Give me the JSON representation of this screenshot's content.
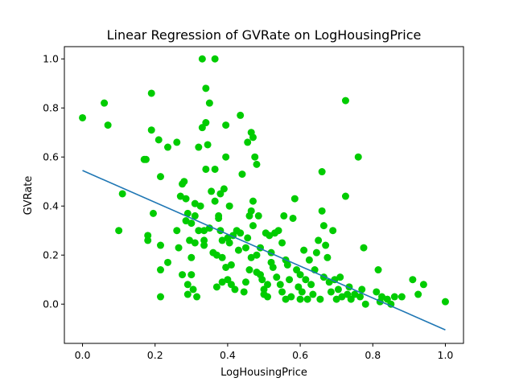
{
  "chart_data": {
    "type": "scatter",
    "title": "Linear Regression of GVRate on LogHousingPrice",
    "xlabel": "LogHousingPrice",
    "ylabel": "GVRate",
    "xlim": [
      -0.05,
      1.05
    ],
    "ylim": [
      -0.16,
      1.05
    ],
    "xticks": [
      "0.0",
      "0.2",
      "0.4",
      "0.6",
      "0.8",
      "1.0"
    ],
    "yticks": [
      "0.0",
      "0.2",
      "0.4",
      "0.6",
      "0.8",
      "1.0"
    ],
    "grid": false,
    "legend": "none",
    "series": [
      {
        "type": "scatter",
        "color": "#00cc00",
        "points": [
          [
            0.0,
            0.76
          ],
          [
            0.06,
            0.82
          ],
          [
            0.07,
            0.73
          ],
          [
            0.1,
            0.3
          ],
          [
            0.11,
            0.45
          ],
          [
            0.17,
            0.59
          ],
          [
            0.175,
            0.59
          ],
          [
            0.18,
            0.28
          ],
          [
            0.18,
            0.26
          ],
          [
            0.19,
            0.86
          ],
          [
            0.19,
            0.71
          ],
          [
            0.195,
            0.37
          ],
          [
            0.21,
            0.67
          ],
          [
            0.215,
            0.52
          ],
          [
            0.215,
            0.24
          ],
          [
            0.215,
            0.14
          ],
          [
            0.215,
            0.03
          ],
          [
            0.235,
            0.64
          ],
          [
            0.235,
            0.17
          ],
          [
            0.26,
            0.66
          ],
          [
            0.26,
            0.3
          ],
          [
            0.265,
            0.23
          ],
          [
            0.27,
            0.44
          ],
          [
            0.275,
            0.49
          ],
          [
            0.275,
            0.12
          ],
          [
            0.28,
            0.5
          ],
          [
            0.285,
            0.34
          ],
          [
            0.285,
            0.43
          ],
          [
            0.29,
            0.37
          ],
          [
            0.29,
            0.08
          ],
          [
            0.29,
            0.04
          ],
          [
            0.295,
            0.26
          ],
          [
            0.3,
            0.33
          ],
          [
            0.3,
            0.19
          ],
          [
            0.3,
            0.12
          ],
          [
            0.305,
            0.06
          ],
          [
            0.31,
            0.41
          ],
          [
            0.31,
            0.25
          ],
          [
            0.31,
            0.36
          ],
          [
            0.315,
            0.03
          ],
          [
            0.32,
            0.64
          ],
          [
            0.32,
            0.3
          ],
          [
            0.325,
            0.4
          ],
          [
            0.33,
            1.0
          ],
          [
            0.33,
            0.72
          ],
          [
            0.335,
            0.3
          ],
          [
            0.335,
            0.26
          ],
          [
            0.335,
            0.24
          ],
          [
            0.34,
            0.88
          ],
          [
            0.34,
            0.55
          ],
          [
            0.34,
            0.74
          ],
          [
            0.345,
            0.65
          ],
          [
            0.35,
            0.82
          ],
          [
            0.35,
            0.31
          ],
          [
            0.355,
            0.46
          ],
          [
            0.36,
            0.21
          ],
          [
            0.365,
            1.0
          ],
          [
            0.365,
            0.55
          ],
          [
            0.365,
            0.42
          ],
          [
            0.37,
            0.07
          ],
          [
            0.37,
            0.2
          ],
          [
            0.375,
            0.36
          ],
          [
            0.375,
            0.35
          ],
          [
            0.38,
            0.45
          ],
          [
            0.38,
            0.3
          ],
          [
            0.385,
            0.26
          ],
          [
            0.385,
            0.19
          ],
          [
            0.385,
            0.09
          ],
          [
            0.39,
            0.47
          ],
          [
            0.395,
            0.73
          ],
          [
            0.395,
            0.6
          ],
          [
            0.395,
            0.15
          ],
          [
            0.4,
            0.27
          ],
          [
            0.4,
            0.1
          ],
          [
            0.405,
            0.4
          ],
          [
            0.405,
            0.25
          ],
          [
            0.41,
            0.16
          ],
          [
            0.41,
            0.08
          ],
          [
            0.415,
            0.28
          ],
          [
            0.42,
            0.06
          ],
          [
            0.425,
            0.3
          ],
          [
            0.43,
            0.22
          ],
          [
            0.435,
            0.77
          ],
          [
            0.435,
            0.29
          ],
          [
            0.44,
            0.53
          ],
          [
            0.445,
            0.05
          ],
          [
            0.45,
            0.23
          ],
          [
            0.45,
            0.09
          ],
          [
            0.455,
            0.27
          ],
          [
            0.455,
            0.66
          ],
          [
            0.46,
            0.36
          ],
          [
            0.46,
            0.14
          ],
          [
            0.465,
            0.7
          ],
          [
            0.465,
            0.38
          ],
          [
            0.465,
            0.19
          ],
          [
            0.47,
            0.68
          ],
          [
            0.47,
            0.42
          ],
          [
            0.47,
            0.32
          ],
          [
            0.475,
            0.6
          ],
          [
            0.48,
            0.57
          ],
          [
            0.48,
            0.2
          ],
          [
            0.48,
            0.13
          ],
          [
            0.485,
            0.36
          ],
          [
            0.49,
            0.23
          ],
          [
            0.49,
            0.12
          ],
          [
            0.495,
            0.1
          ],
          [
            0.5,
            0.06
          ],
          [
            0.5,
            0.04
          ],
          [
            0.505,
            0.29
          ],
          [
            0.51,
            0.08
          ],
          [
            0.51,
            0.03
          ],
          [
            0.515,
            0.28
          ],
          [
            0.52,
            0.21
          ],
          [
            0.52,
            0.17
          ],
          [
            0.525,
            0.15
          ],
          [
            0.53,
            0.29
          ],
          [
            0.535,
            0.11
          ],
          [
            0.54,
            0.3
          ],
          [
            0.545,
            0.08
          ],
          [
            0.55,
            0.25
          ],
          [
            0.55,
            0.05
          ],
          [
            0.555,
            0.36
          ],
          [
            0.56,
            0.18
          ],
          [
            0.56,
            0.02
          ],
          [
            0.565,
            0.16
          ],
          [
            0.57,
            0.1
          ],
          [
            0.575,
            0.03
          ],
          [
            0.58,
            0.35
          ],
          [
            0.585,
            0.43
          ],
          [
            0.59,
            0.14
          ],
          [
            0.595,
            0.07
          ],
          [
            0.6,
            0.12
          ],
          [
            0.6,
            0.02
          ],
          [
            0.605,
            0.05
          ],
          [
            0.61,
            0.22
          ],
          [
            0.615,
            0.1
          ],
          [
            0.62,
            0.02
          ],
          [
            0.625,
            0.18
          ],
          [
            0.63,
            0.08
          ],
          [
            0.635,
            0.04
          ],
          [
            0.64,
            0.14
          ],
          [
            0.645,
            0.21
          ],
          [
            0.65,
            0.26
          ],
          [
            0.655,
            0.02
          ],
          [
            0.66,
            0.54
          ],
          [
            0.66,
            0.38
          ],
          [
            0.665,
            0.32
          ],
          [
            0.665,
            0.11
          ],
          [
            0.67,
            0.24
          ],
          [
            0.675,
            0.19
          ],
          [
            0.68,
            0.09
          ],
          [
            0.685,
            0.05
          ],
          [
            0.69,
            0.3
          ],
          [
            0.695,
            0.1
          ],
          [
            0.7,
            0.02
          ],
          [
            0.705,
            0.06
          ],
          [
            0.71,
            0.11
          ],
          [
            0.715,
            0.03
          ],
          [
            0.725,
            0.83
          ],
          [
            0.725,
            0.44
          ],
          [
            0.73,
            0.04
          ],
          [
            0.735,
            0.07
          ],
          [
            0.74,
            0.02
          ],
          [
            0.75,
            0.04
          ],
          [
            0.76,
            0.6
          ],
          [
            0.765,
            0.03
          ],
          [
            0.77,
            0.06
          ],
          [
            0.775,
            0.23
          ],
          [
            0.78,
            0.0
          ],
          [
            0.81,
            0.05
          ],
          [
            0.815,
            0.14
          ],
          [
            0.82,
            0.01
          ],
          [
            0.825,
            0.03
          ],
          [
            0.84,
            0.02
          ],
          [
            0.85,
            0.0
          ],
          [
            0.86,
            0.03
          ],
          [
            0.88,
            0.03
          ],
          [
            0.91,
            0.1
          ],
          [
            0.925,
            0.04
          ],
          [
            0.94,
            0.08
          ],
          [
            1.0,
            0.01
          ]
        ]
      },
      {
        "type": "line",
        "color": "#1f77b4",
        "points": [
          [
            0.0,
            0.545
          ],
          [
            1.0,
            -0.105
          ]
        ]
      }
    ]
  }
}
